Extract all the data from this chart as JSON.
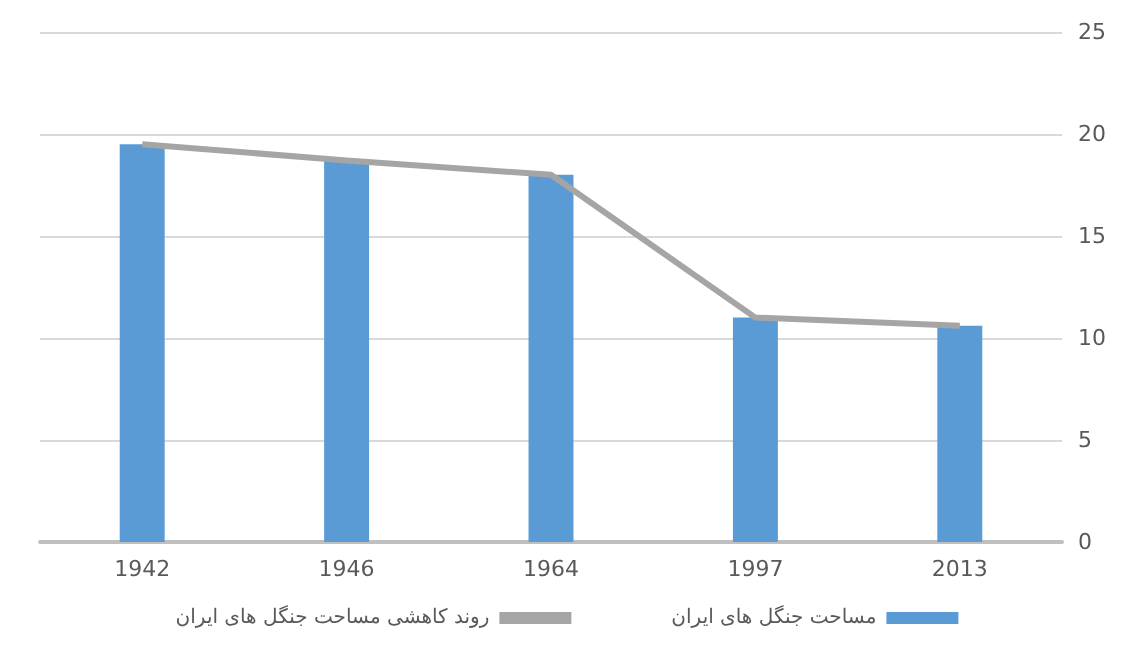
{
  "chart_data": {
    "type": "bar",
    "categories": [
      "1942",
      "1946",
      "1964",
      "1997",
      "2013"
    ],
    "series": [
      {
        "name": "مساحت جنگل های ایران",
        "color": "#5b9bd5",
        "values": [
          19.5,
          18.7,
          18,
          11,
          10.6
        ]
      },
      {
        "name": "روند کاهشی مساحت جنگل های ایران",
        "type": "line",
        "color": "#a5a5a5",
        "values": [
          19.5,
          18.7,
          18,
          11,
          10.6
        ]
      }
    ],
    "ylim": [
      0,
      25
    ],
    "yticks": [
      0,
      5,
      10,
      15,
      20,
      25
    ],
    "grid": "y",
    "legend": "bottom",
    "marker": "none"
  }
}
